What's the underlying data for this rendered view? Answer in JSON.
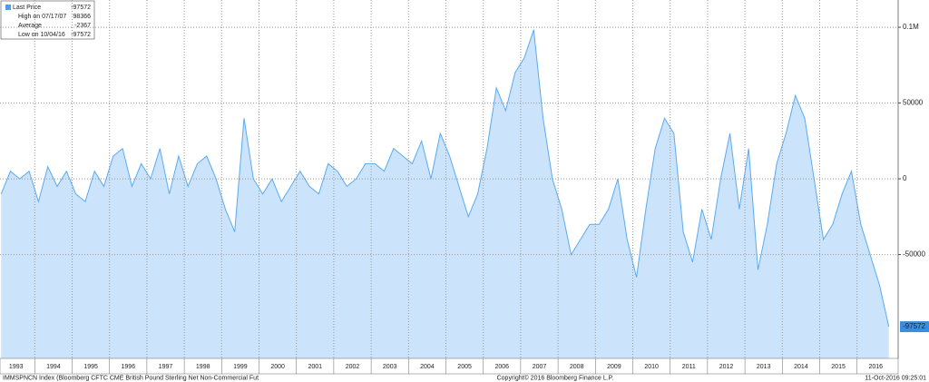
{
  "chart_data": {
    "type": "area",
    "title": "IMMSPNCN Index (Bloomberg CFTC CME British Pound Sterling Net Non-Commercial Fut",
    "copyright": "Copyright© 2016 Bloomberg Finance L.P.",
    "timestamp": "11-Oct-2016 09:25:01",
    "legend": [
      {
        "label": "Last Price",
        "value": -97572
      },
      {
        "label": "High on 07/17/07",
        "value": 98366
      },
      {
        "label": "Average",
        "value": -2367
      },
      {
        "label": "Low on 10/04/16",
        "value": -97572
      }
    ],
    "last_value": -97572,
    "color": "#5aaaf0",
    "fill": "#cce4fb",
    "grid": true,
    "xlim": [
      1993.07,
      2017.1
    ],
    "xticks": [
      1993,
      1994,
      1995,
      1996,
      1997,
      1998,
      1999,
      2000,
      2001,
      2002,
      2003,
      2004,
      2005,
      2006,
      2007,
      2008,
      2009,
      2010,
      2011,
      2012,
      2013,
      2014,
      2015,
      2016
    ],
    "ylim": [
      -118500,
      118000
    ],
    "yticks": [
      {
        "value": 100000,
        "label": "0.1M"
      },
      50000,
      0,
      -50000
    ],
    "series": [
      {
        "name": "Last Price",
        "x": [
          1993.1,
          1993.35,
          1993.6,
          1993.85,
          1994.1,
          1994.35,
          1994.6,
          1994.85,
          1995.1,
          1995.35,
          1995.6,
          1995.85,
          1996.1,
          1996.35,
          1996.6,
          1996.85,
          1997.1,
          1997.35,
          1997.6,
          1997.85,
          1998.1,
          1998.35,
          1998.6,
          1998.85,
          1999.1,
          1999.35,
          1999.6,
          1999.85,
          2000.1,
          2000.35,
          2000.6,
          2000.85,
          2001.1,
          2001.35,
          2001.6,
          2001.85,
          2002.1,
          2002.35,
          2002.6,
          2002.85,
          2003.1,
          2003.35,
          2003.6,
          2003.85,
          2004.1,
          2004.35,
          2004.6,
          2004.85,
          2005.1,
          2005.35,
          2005.6,
          2005.85,
          2006.1,
          2006.35,
          2006.6,
          2006.85,
          2007.1,
          2007.35,
          2007.6,
          2007.85,
          2008.1,
          2008.35,
          2008.6,
          2008.85,
          2009.1,
          2009.35,
          2009.6,
          2009.85,
          2010.1,
          2010.35,
          2010.6,
          2010.85,
          2011.1,
          2011.35,
          2011.6,
          2011.85,
          2012.1,
          2012.35,
          2012.6,
          2012.85,
          2013.1,
          2013.35,
          2013.6,
          2013.85,
          2014.1,
          2014.35,
          2014.6,
          2014.85,
          2015.1,
          2015.35,
          2015.6,
          2015.85,
          2016.1,
          2016.35,
          2016.6,
          2016.85
        ],
        "values": [
          -10000,
          5000,
          0,
          5000,
          -15000,
          8000,
          -5000,
          5000,
          -10000,
          -15000,
          5000,
          -5000,
          15000,
          20000,
          -5000,
          10000,
          0,
          20000,
          -10000,
          15000,
          -5000,
          10000,
          15000,
          0,
          -20000,
          -35000,
          40000,
          0,
          -10000,
          0,
          -15000,
          -5000,
          5000,
          -5000,
          -10000,
          10000,
          5000,
          -5000,
          0,
          10000,
          10000,
          5000,
          20000,
          15000,
          10000,
          25000,
          0,
          30000,
          15000,
          -5000,
          -25000,
          -10000,
          20000,
          60000,
          45000,
          70000,
          80000,
          98366,
          40000,
          0,
          -20000,
          -50000,
          -40000,
          -30000,
          -30000,
          -20000,
          0,
          -40000,
          -65000,
          -20000,
          20000,
          40000,
          30000,
          -35000,
          -55000,
          -20000,
          -40000,
          0,
          30000,
          -20000,
          20000,
          -60000,
          -30000,
          10000,
          30000,
          55000,
          40000,
          0,
          -40000,
          -30000,
          -10000,
          5000,
          -30000,
          -50000,
          -70000,
          -97572
        ]
      }
    ]
  }
}
